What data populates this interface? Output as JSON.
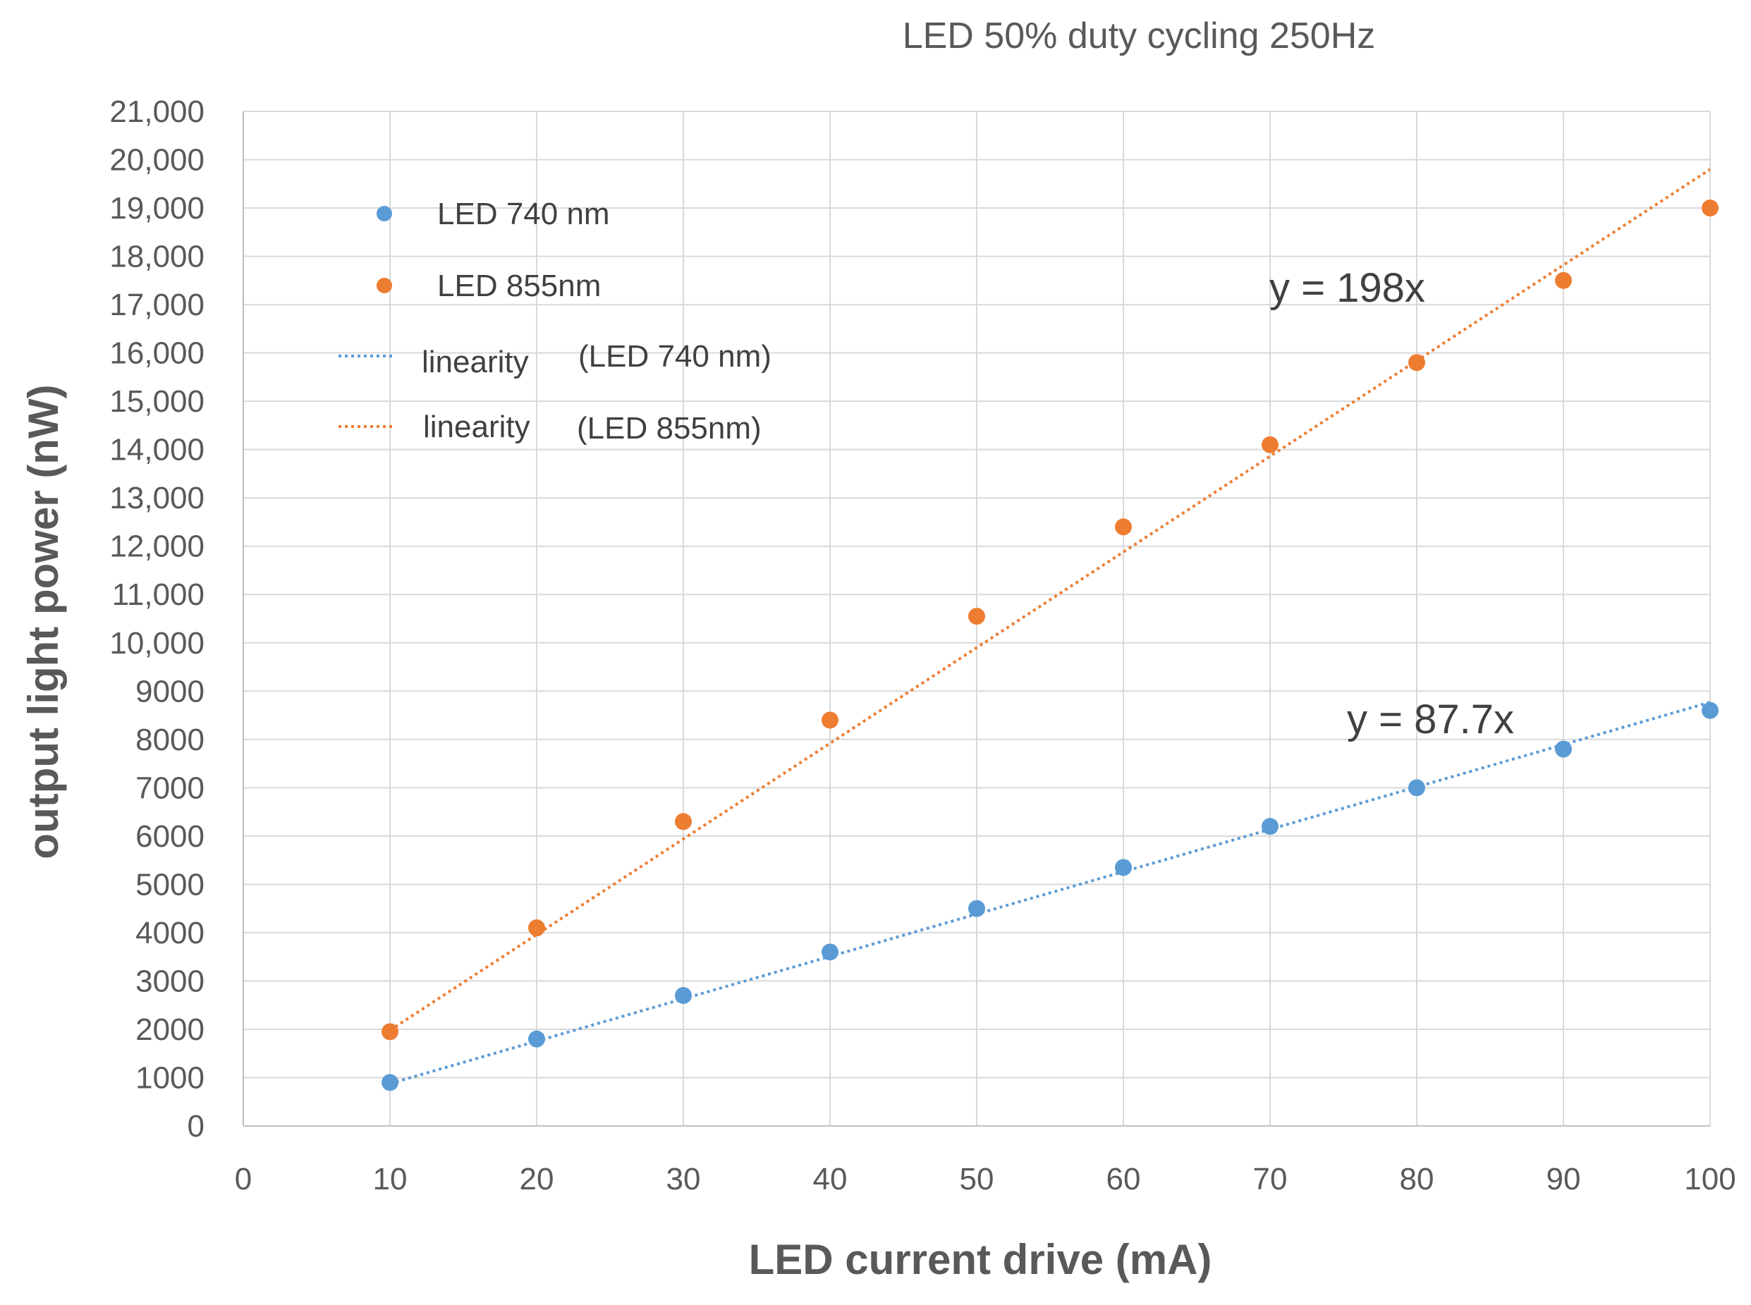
{
  "chart_data": {
    "type": "scatter",
    "title": "LED 50% duty cycling 250Hz",
    "xlabel": "LED  current drive (mA)",
    "ylabel": "output light power (nW)",
    "xlim": [
      0,
      100
    ],
    "ylim": [
      0,
      21000
    ],
    "x_ticks": [
      "0",
      "10",
      "20",
      "30",
      "40",
      "50",
      "60",
      "70",
      "80",
      "90",
      "100"
    ],
    "y_ticks": [
      "0",
      "1000",
      "2000",
      "3000",
      "4000",
      "5000",
      "6000",
      "7000",
      "8000",
      "9000",
      "10,000",
      "11,000",
      "12,000",
      "13,000",
      "14,000",
      "15,000",
      "16,000",
      "17,000",
      "18,000",
      "19,000",
      "20,000",
      "21,000"
    ],
    "grid": true,
    "legend_position": "top-left",
    "series": [
      {
        "name": "LED 740 nm",
        "color": "#5b9bd5",
        "x": [
          10,
          20,
          30,
          40,
          50,
          60,
          70,
          80,
          90,
          100
        ],
        "y": [
          900,
          1800,
          2700,
          3600,
          4500,
          5350,
          6200,
          7000,
          7800,
          8600
        ]
      },
      {
        "name": "LED 855nm",
        "color": "#ed7d31",
        "x": [
          10,
          20,
          30,
          40,
          50,
          60,
          70,
          80,
          90,
          100
        ],
        "y": [
          1950,
          4100,
          6300,
          8400,
          10550,
          12400,
          14100,
          15800,
          17500,
          19000
        ]
      }
    ],
    "trendlines": [
      {
        "legend_label": "linearity",
        "legend_suffix": "(LED 740 nm)",
        "series": "LED 740 nm",
        "slope": 87.7,
        "x_range": [
          10,
          100
        ],
        "color": "#5b9bd5",
        "equation": "y = 87.7x"
      },
      {
        "legend_label": "linearity",
        "legend_suffix": "(LED 855nm)",
        "series": "LED 855nm",
        "slope": 198,
        "x_range": [
          10,
          100
        ],
        "color": "#ed7d31",
        "equation": "y = 198x"
      }
    ]
  }
}
